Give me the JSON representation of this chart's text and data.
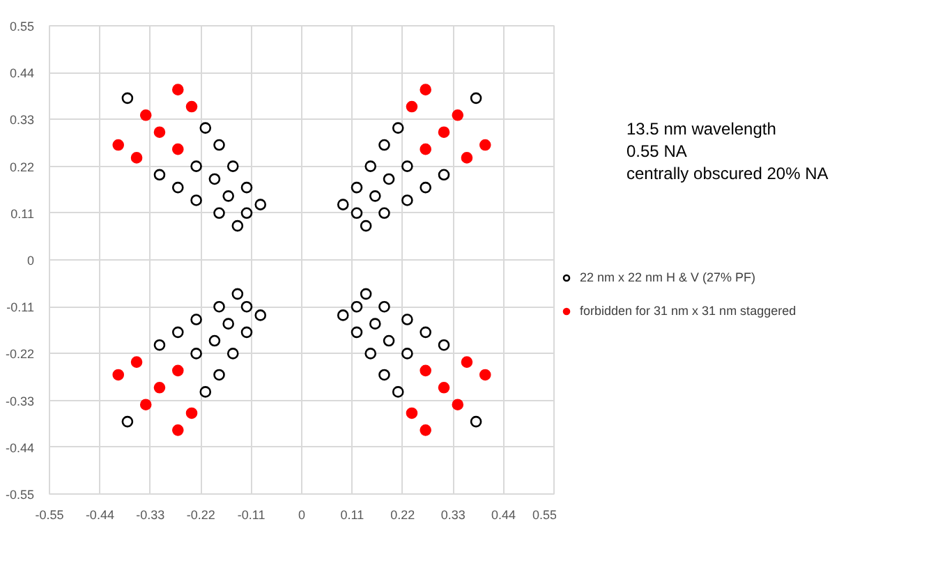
{
  "chart_data": {
    "type": "scatter",
    "marker": "circle",
    "grid": true,
    "legend": "right",
    "xlim": [
      -0.55,
      0.55
    ],
    "ylim": [
      -0.55,
      0.55
    ],
    "xticks": [
      -0.55,
      -0.44,
      -0.33,
      -0.22,
      -0.11,
      0,
      0.11,
      0.22,
      0.33,
      0.44,
      0.55
    ],
    "yticks": [
      -0.55,
      -0.44,
      -0.33,
      -0.22,
      -0.11,
      0,
      0.11,
      0.22,
      0.33,
      0.44,
      0.55
    ],
    "annotations": [
      "13.5 nm wavelength",
      "0.55 NA",
      "centrally obscured 20% NA"
    ],
    "series": [
      {
        "name": "22 nm x 22 nm H & V (27% PF)",
        "color": "#000000",
        "x": [
          -0.38,
          -0.21,
          -0.18,
          -0.23,
          -0.15,
          -0.31,
          -0.19,
          -0.12,
          -0.27,
          -0.16,
          -0.23,
          -0.09,
          -0.18,
          -0.12,
          -0.14,
          0.38,
          0.21,
          0.18,
          0.23,
          0.15,
          0.31,
          0.19,
          0.12,
          0.27,
          0.16,
          0.23,
          0.09,
          0.18,
          0.12,
          0.14,
          -0.38,
          -0.21,
          -0.18,
          -0.23,
          -0.15,
          -0.31,
          -0.19,
          -0.12,
          -0.27,
          -0.16,
          -0.23,
          -0.09,
          -0.18,
          -0.12,
          -0.14,
          0.38,
          0.21,
          0.18,
          0.23,
          0.15,
          0.31,
          0.19,
          0.12,
          0.27,
          0.16,
          0.23,
          0.09,
          0.18,
          0.12,
          0.14
        ],
        "values": [
          0.38,
          0.31,
          0.27,
          0.22,
          0.22,
          0.2,
          0.19,
          0.17,
          0.17,
          0.15,
          0.14,
          0.13,
          0.11,
          0.11,
          0.08,
          0.38,
          0.31,
          0.27,
          0.22,
          0.22,
          0.2,
          0.19,
          0.17,
          0.17,
          0.15,
          0.14,
          0.13,
          0.11,
          0.11,
          0.08,
          -0.38,
          -0.31,
          -0.27,
          -0.22,
          -0.22,
          -0.2,
          -0.19,
          -0.17,
          -0.17,
          -0.15,
          -0.14,
          -0.13,
          -0.11,
          -0.11,
          -0.08,
          -0.38,
          -0.31,
          -0.27,
          -0.22,
          -0.22,
          -0.2,
          -0.19,
          -0.17,
          -0.17,
          -0.15,
          -0.14,
          -0.13,
          -0.11,
          -0.11,
          -0.08
        ]
      },
      {
        "name": "forbidden for 31 nm x 31 nm staggered",
        "color": "#ff0000",
        "x": [
          -0.27,
          -0.24,
          -0.34,
          -0.31,
          -0.4,
          -0.27,
          -0.36,
          0.27,
          0.24,
          0.34,
          0.31,
          0.4,
          0.27,
          0.36,
          -0.27,
          -0.24,
          -0.34,
          -0.31,
          -0.4,
          -0.27,
          -0.36,
          0.27,
          0.24,
          0.34,
          0.31,
          0.4,
          0.27,
          0.36
        ],
        "values": [
          0.4,
          0.36,
          0.34,
          0.3,
          0.27,
          0.26,
          0.24,
          0.4,
          0.36,
          0.34,
          0.3,
          0.27,
          0.26,
          0.24,
          -0.4,
          -0.36,
          -0.34,
          -0.3,
          -0.27,
          -0.26,
          -0.24,
          -0.4,
          -0.36,
          -0.34,
          -0.3,
          -0.27,
          -0.26,
          -0.24
        ]
      }
    ]
  }
}
